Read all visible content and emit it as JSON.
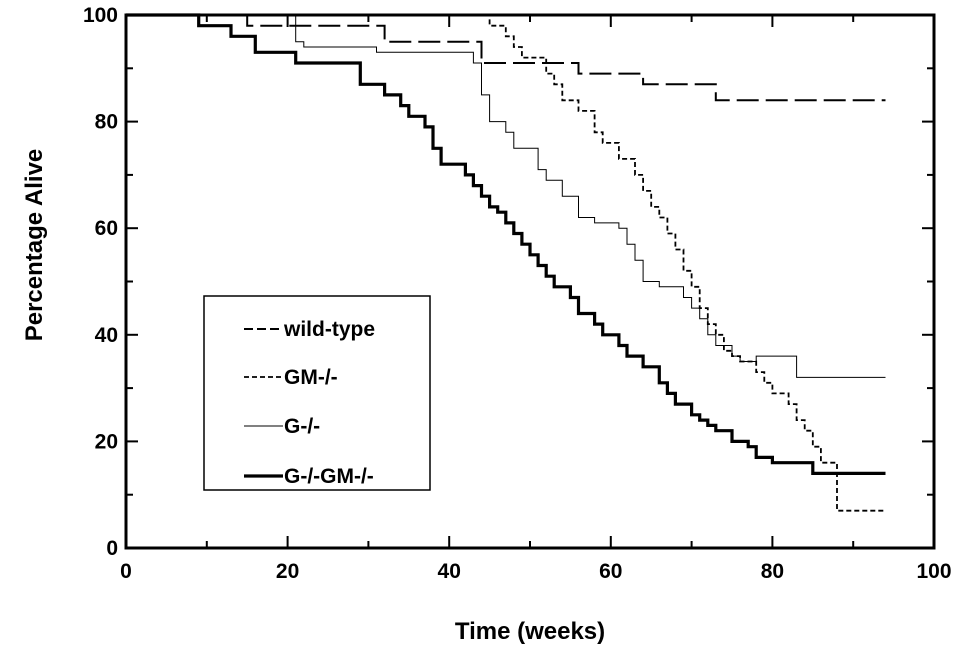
{
  "chart_data": {
    "type": "line",
    "step": true,
    "xlabel": "Time (weeks)",
    "ylabel": "Percentage Alive",
    "xlim": [
      0,
      100
    ],
    "ylim": [
      0,
      100
    ],
    "xticks": [
      "0",
      "20",
      "40",
      "60",
      "80",
      "100"
    ],
    "yticks": [
      "0",
      "20",
      "40",
      "60",
      "80",
      "100"
    ],
    "grid": false,
    "legend_position": "center-left",
    "series": [
      {
        "name": "wild-type",
        "style": "long-dash",
        "color": "#000000",
        "x": [
          0,
          15,
          32,
          44,
          56,
          64,
          73,
          94
        ],
        "y": [
          100,
          98,
          95,
          91,
          89,
          87,
          84,
          84
        ]
      },
      {
        "name": "GM-/-",
        "style": "short-dash",
        "color": "#000000",
        "x": [
          0,
          45,
          47,
          48,
          49,
          52,
          53,
          54,
          56,
          58,
          59,
          61,
          63,
          64,
          65,
          66,
          67,
          68,
          69,
          70,
          71,
          72,
          73,
          74,
          75,
          76,
          78,
          79,
          80,
          82,
          83,
          84,
          85,
          86,
          88,
          94
        ],
        "y": [
          100,
          98,
          96,
          94,
          92,
          89,
          87,
          84,
          82,
          78,
          76,
          73,
          70,
          67,
          64,
          62,
          59,
          56,
          52,
          49,
          45,
          42,
          40,
          37,
          36,
          35,
          33,
          31,
          29,
          27,
          24,
          22,
          19,
          16,
          7,
          7
        ]
      },
      {
        "name": "G-/-",
        "style": "thin",
        "color": "#000000",
        "x": [
          0,
          21,
          22,
          31,
          43,
          44,
          45,
          47,
          48,
          51,
          52,
          54,
          56,
          58,
          61,
          62,
          63,
          64,
          66,
          69,
          70,
          71,
          72,
          73,
          75,
          76,
          78,
          83,
          94
        ],
        "y": [
          100,
          95,
          94,
          93,
          91,
          85,
          80,
          78,
          75,
          71,
          69,
          66,
          62,
          61,
          60,
          57,
          54,
          50,
          49,
          47,
          45,
          43,
          40,
          38,
          36,
          35,
          36,
          32,
          32
        ]
      },
      {
        "name": "G-/-GM-/-",
        "style": "thick",
        "color": "#000000",
        "x": [
          0,
          9,
          13,
          16,
          21,
          29,
          32,
          34,
          35,
          37,
          38,
          39,
          42,
          43,
          44,
          45,
          46,
          47,
          48,
          49,
          50,
          51,
          52,
          53,
          55,
          56,
          58,
          59,
          61,
          62,
          64,
          66,
          67,
          68,
          70,
          71,
          72,
          73,
          75,
          77,
          78,
          80,
          85,
          94
        ],
        "y": [
          100,
          98,
          96,
          93,
          91,
          87,
          85,
          83,
          81,
          79,
          75,
          72,
          70,
          68,
          66,
          64,
          63,
          61,
          59,
          57,
          55,
          53,
          51,
          49,
          47,
          44,
          42,
          40,
          38,
          36,
          34,
          31,
          29,
          27,
          25,
          24,
          23,
          22,
          20,
          19,
          17,
          16,
          14,
          14
        ]
      }
    ]
  }
}
